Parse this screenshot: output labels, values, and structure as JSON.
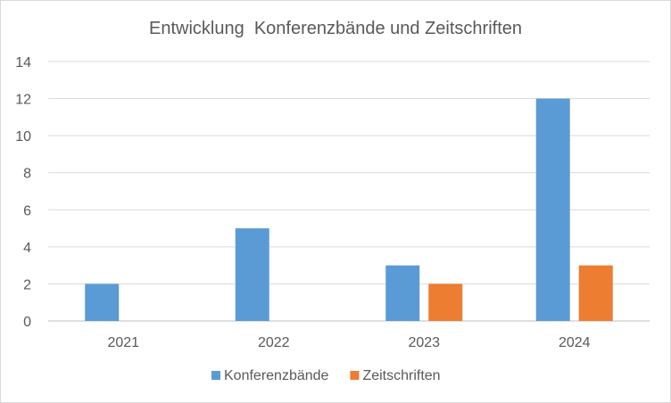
{
  "chart_data": {
    "type": "bar",
    "title": "Entwicklung  Konferenzbände und Zeitschriften",
    "xlabel": "",
    "ylabel": "",
    "categories": [
      "2021",
      "2022",
      "2023",
      "2024"
    ],
    "series": [
      {
        "name": "Konferenzbände",
        "values": [
          2,
          5,
          3,
          12
        ],
        "color": "#5b9bd5"
      },
      {
        "name": "Zeitschriften",
        "values": [
          0,
          0,
          2,
          3
        ],
        "color": "#ed7d31"
      }
    ],
    "ylim": [
      0,
      14
    ],
    "yticks": [
      "0",
      "2",
      "4",
      "6",
      "8",
      "10",
      "12",
      "14"
    ],
    "grid": true,
    "legend_position": "bottom"
  }
}
